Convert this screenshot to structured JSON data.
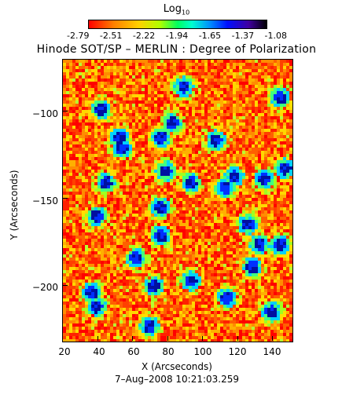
{
  "colorbar": {
    "label": "Log",
    "label_subscript": "10",
    "ticks": [
      "-2.79",
      "-2.51",
      "-2.22",
      "-1.94",
      "-1.65",
      "-1.37",
      "-1.08"
    ],
    "colormap": "rainbow-reversed"
  },
  "title": "Hinode SOT/SP – MERLIN : Degree of Polarization",
  "axes": {
    "x_label": "X (Arcseconds)",
    "y_label": "Y (Arcseconds)",
    "x_ticks": [
      "20",
      "40",
      "60",
      "80",
      "100",
      "120",
      "140"
    ],
    "y_ticks": [
      "−100",
      "−150",
      "−200"
    ],
    "x_range": [
      20,
      151
    ],
    "y_range": [
      -232,
      -70
    ]
  },
  "timestamp": "7–Aug–2008 10:21:03.259",
  "colors": {
    "background_field": "#ff3000",
    "accent_low": "#ff0000",
    "accent_high": "#000000"
  }
}
